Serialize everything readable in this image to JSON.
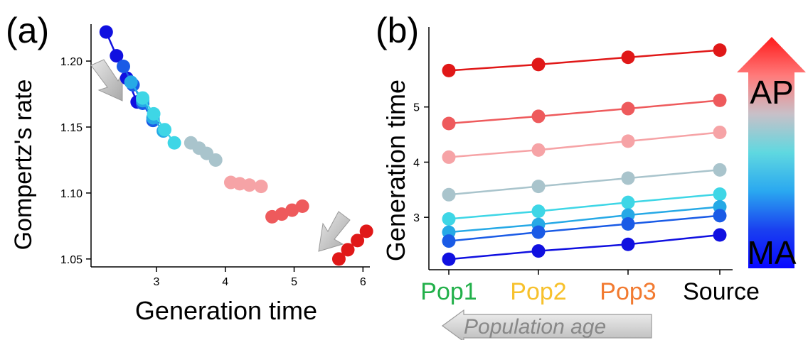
{
  "chart_data": [
    {
      "panel_label": "(a)",
      "type": "scatter",
      "title": "",
      "xlabel": "Generation time",
      "ylabel": "Gompertz's rate",
      "xlim": [
        2.05,
        6.1
      ],
      "ylim": [
        1.044,
        1.228
      ],
      "xticks": [
        3,
        4,
        5,
        6
      ],
      "yticks": [
        1.05,
        1.1,
        1.15,
        1.2
      ],
      "ytick_labels": [
        "1.05",
        "1.10",
        "1.15",
        "1.20"
      ],
      "grid": false,
      "series": [
        {
          "color": "#1010e0",
          "points": [
            [
              2.27,
              1.222
            ],
            [
              2.42,
              1.204
            ],
            [
              2.57,
              1.187
            ],
            [
              2.72,
              1.169
            ]
          ]
        },
        {
          "color": "#1a5be6",
          "points": [
            [
              2.52,
              1.196
            ],
            [
              2.66,
              1.182
            ],
            [
              2.8,
              1.168
            ],
            [
              2.95,
              1.155
            ]
          ]
        },
        {
          "color": "#26a9e6",
          "points": [
            [
              2.63,
              1.184
            ],
            [
              2.8,
              1.17
            ],
            [
              2.95,
              1.157
            ],
            [
              3.1,
              1.147
            ]
          ]
        },
        {
          "color": "#3ed6e6",
          "points": [
            [
              2.8,
              1.172
            ],
            [
              2.96,
              1.16
            ],
            [
              3.12,
              1.148
            ],
            [
              3.26,
              1.138
            ]
          ]
        },
        {
          "color": "#a9c4cc",
          "points": [
            [
              3.5,
              1.138
            ],
            [
              3.62,
              1.134
            ],
            [
              3.73,
              1.13
            ],
            [
              3.86,
              1.125
            ]
          ]
        },
        {
          "color": "#f6a3a6",
          "points": [
            [
              4.08,
              1.108
            ],
            [
              4.21,
              1.107
            ],
            [
              4.35,
              1.106
            ],
            [
              4.52,
              1.105
            ]
          ]
        },
        {
          "color": "#ee5a5c",
          "points": [
            [
              4.68,
              1.082
            ],
            [
              4.82,
              1.084
            ],
            [
              4.97,
              1.087
            ],
            [
              5.12,
              1.09
            ]
          ]
        },
        {
          "color": "#e01818",
          "points": [
            [
              5.65,
              1.05
            ],
            [
              5.78,
              1.057
            ],
            [
              5.92,
              1.064
            ],
            [
              6.05,
              1.071
            ]
          ]
        }
      ],
      "annotations": [
        "arrow-down-right-near-top-left",
        "arrow-down-left-near-bottom-right"
      ]
    },
    {
      "panel_label": "(b)",
      "type": "line",
      "title": "",
      "xlabel": "",
      "ylabel": "Generation time",
      "categories": [
        "Pop1",
        "Pop2",
        "Pop3",
        "Source"
      ],
      "category_colors": [
        "#22b04a",
        "#f7c12c",
        "#f27a30",
        "#000000"
      ],
      "ylim": [
        2.05,
        6.45
      ],
      "yticks": [
        3,
        4,
        5
      ],
      "grid": false,
      "series": [
        {
          "color": "#e01818",
          "values": [
            5.66,
            5.77,
            5.9,
            6.03
          ]
        },
        {
          "color": "#ee5a5c",
          "values": [
            4.7,
            4.83,
            4.97,
            5.12
          ]
        },
        {
          "color": "#f6a3a6",
          "values": [
            4.09,
            4.22,
            4.38,
            4.54
          ]
        },
        {
          "color": "#a9c4cc",
          "values": [
            3.41,
            3.56,
            3.71,
            3.86
          ]
        },
        {
          "color": "#3ed6e6",
          "values": [
            2.97,
            3.11,
            3.27,
            3.42
          ]
        },
        {
          "color": "#26a9e6",
          "values": [
            2.73,
            2.87,
            3.04,
            3.19
          ]
        },
        {
          "color": "#1a5be6",
          "values": [
            2.57,
            2.73,
            2.88,
            3.03
          ]
        },
        {
          "color": "#1010e0",
          "values": [
            2.24,
            2.39,
            2.51,
            2.68
          ]
        }
      ],
      "population_age_label": "Population age"
    }
  ],
  "gradient_legend": {
    "top_label": "AP",
    "bottom_label": "MA",
    "colors": [
      "#ff1a1a",
      "#ff7a7a",
      "#c8c0c8",
      "#5fd8e0",
      "#2aa8f0",
      "#1a40f0",
      "#0808ff"
    ]
  }
}
